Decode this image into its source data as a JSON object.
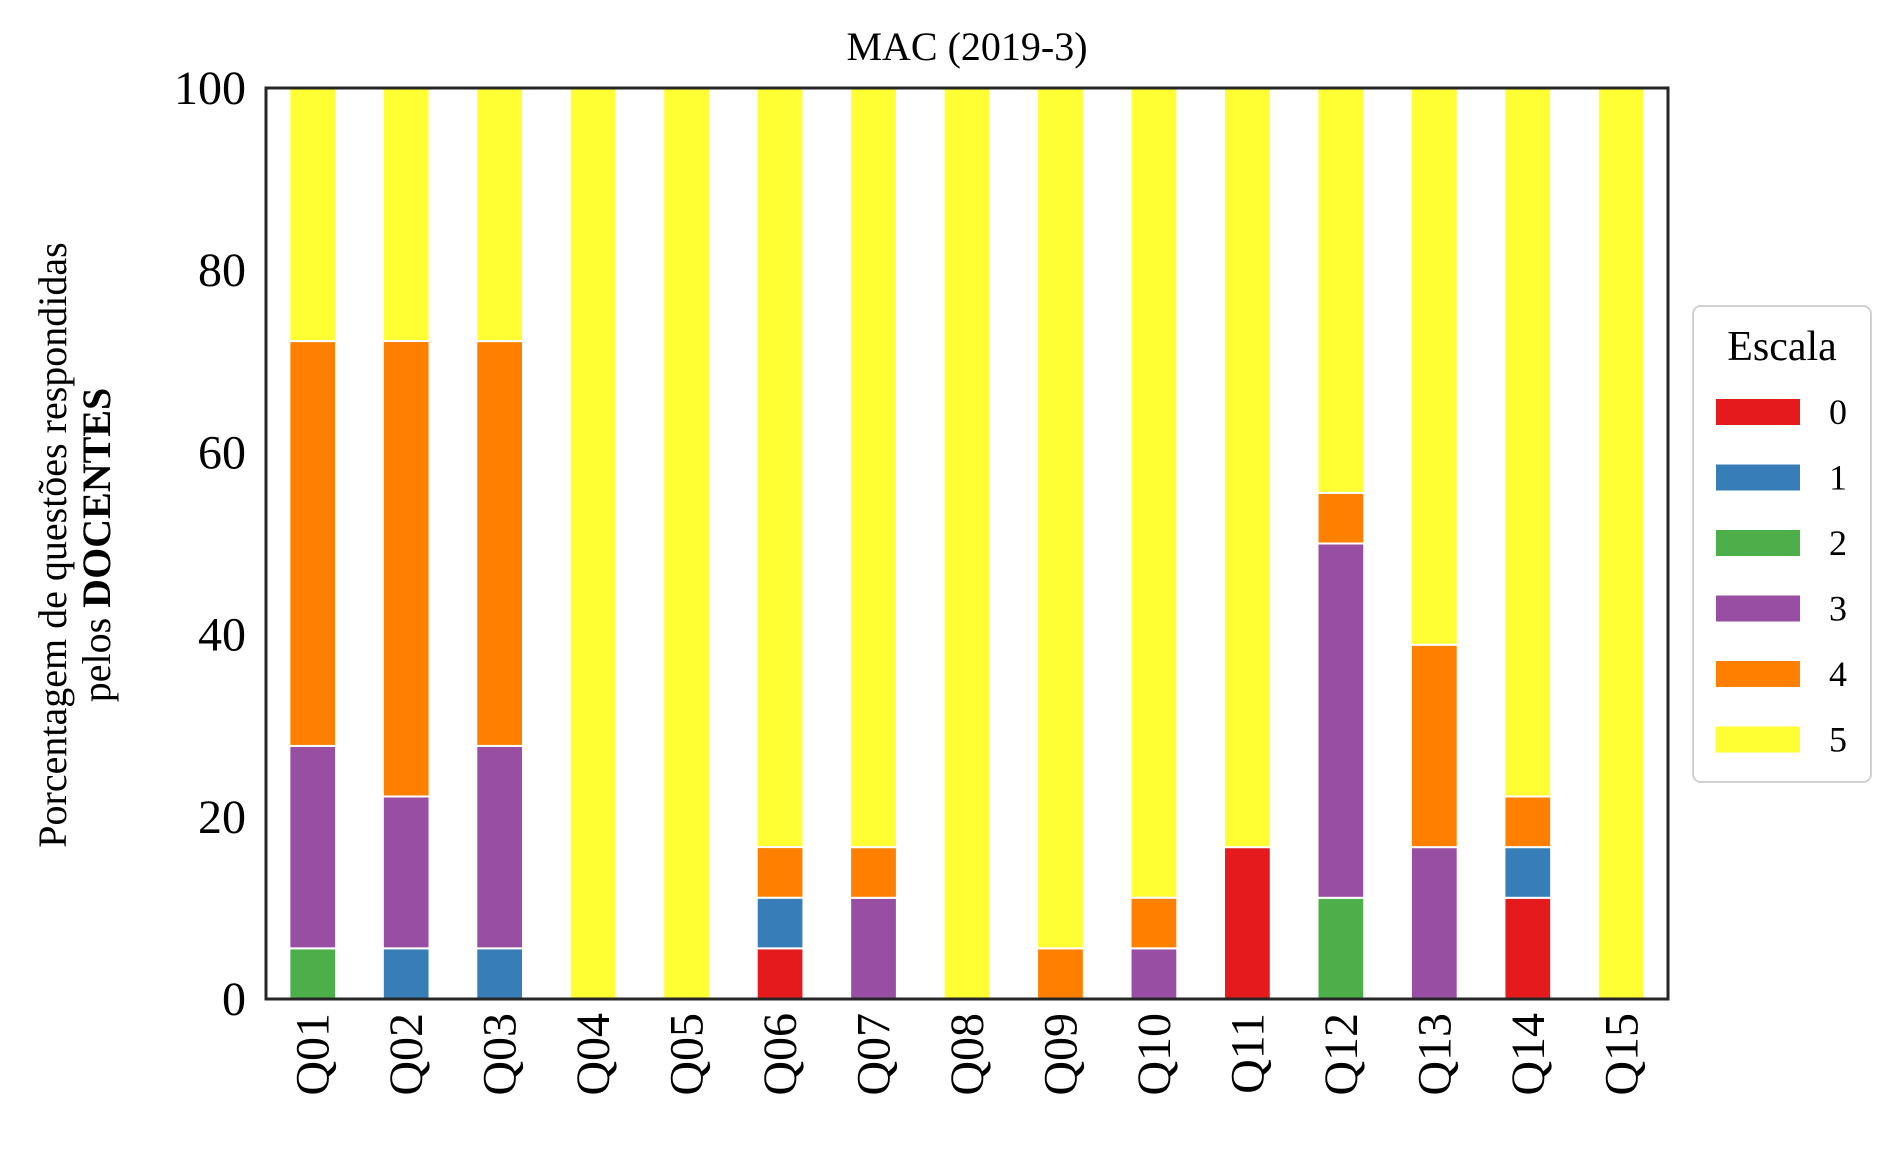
{
  "chart_data": {
    "type": "bar",
    "stacked": true,
    "title": "MAC (2019-3)",
    "ylabel_line1": "Porcentagem de questões respondidas",
    "ylabel_line2_prefix": "pelos",
    "ylabel_line2_bold": "DOCENTES",
    "ylim": [
      0,
      100
    ],
    "yticks": [
      "0",
      "20",
      "40",
      "60",
      "80",
      "100"
    ],
    "grid": false,
    "legend": {
      "title": "Escala",
      "placement": "right"
    },
    "categories": [
      "Q01",
      "Q02",
      "Q03",
      "Q04",
      "Q05",
      "Q06",
      "Q07",
      "Q08",
      "Q09",
      "Q10",
      "Q11",
      "Q12",
      "Q13",
      "Q14",
      "Q15"
    ],
    "series": [
      {
        "name": "0",
        "color": "#e41a1c",
        "values": [
          0,
          0,
          0,
          0,
          0,
          5.56,
          0,
          0,
          0,
          0,
          16.67,
          0,
          0,
          11.11,
          0
        ]
      },
      {
        "name": "1",
        "color": "#377eb8",
        "values": [
          0,
          5.56,
          5.56,
          0,
          0,
          5.56,
          0,
          0,
          0,
          0,
          0,
          0,
          0,
          5.56,
          0
        ]
      },
      {
        "name": "2",
        "color": "#4daf4a",
        "values": [
          5.56,
          0,
          0,
          0,
          0,
          0,
          0,
          0,
          0,
          0,
          0,
          11.11,
          0,
          0,
          0
        ]
      },
      {
        "name": "3",
        "color": "#984ea3",
        "values": [
          22.22,
          16.67,
          22.22,
          0,
          0,
          0,
          11.11,
          0,
          0,
          5.56,
          0,
          38.89,
          16.67,
          0,
          0
        ]
      },
      {
        "name": "4",
        "color": "#ff7f00",
        "values": [
          44.44,
          50.0,
          44.44,
          0,
          0,
          5.56,
          5.56,
          0,
          5.56,
          5.56,
          0,
          5.56,
          22.22,
          5.56,
          0
        ]
      },
      {
        "name": "5",
        "color": "#ffff33",
        "values": [
          27.78,
          27.78,
          27.78,
          100,
          100,
          83.33,
          83.33,
          100,
          94.44,
          88.89,
          83.33,
          44.44,
          61.11,
          77.78,
          100
        ]
      }
    ]
  }
}
